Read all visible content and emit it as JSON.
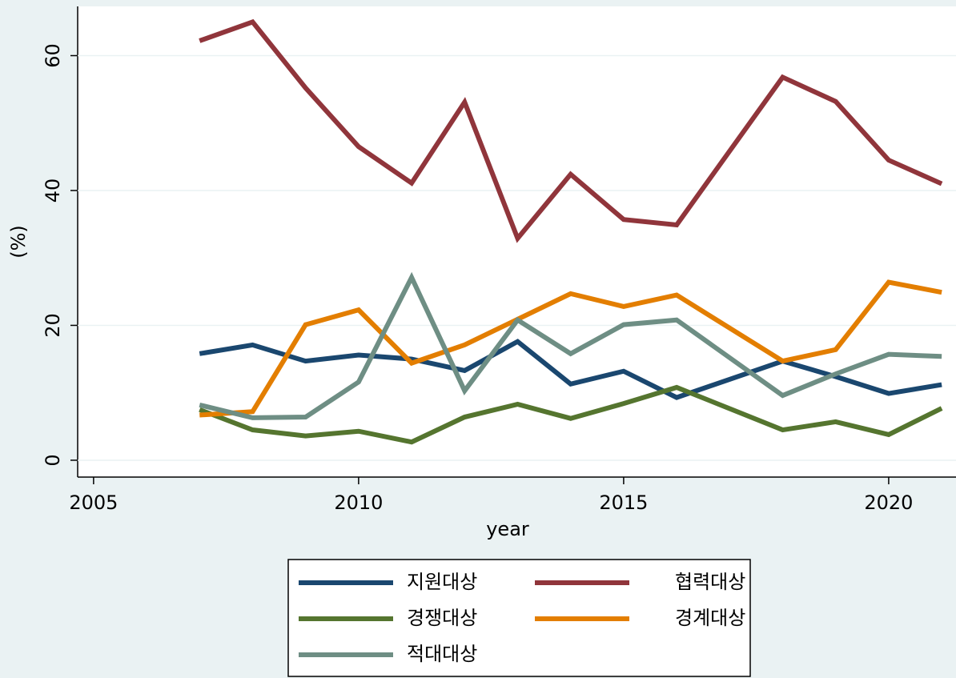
{
  "chart_data": {
    "type": "line",
    "x_label": "year",
    "y_label": "(%)",
    "x": [
      2007,
      2008,
      2009,
      2010,
      2011,
      2012,
      2013,
      2014,
      2015,
      2016,
      2018,
      2019,
      2020,
      2021
    ],
    "series": [
      {
        "name": "지원대상",
        "color": "#1a476f",
        "values": [
          15.8,
          17.1,
          14.7,
          15.6,
          15.0,
          13.3,
          17.6,
          11.3,
          13.2,
          9.3,
          14.7,
          12.4,
          9.9,
          11.2
        ]
      },
      {
        "name": "협력대상",
        "color": "#90353b",
        "values": [
          62.2,
          65.0,
          55.2,
          46.5,
          41.1,
          53.1,
          32.9,
          42.4,
          35.7,
          34.9,
          56.8,
          53.2,
          44.5,
          41.0
        ]
      },
      {
        "name": "경쟁대상",
        "color": "#55752f",
        "values": [
          7.5,
          4.5,
          3.6,
          4.3,
          2.7,
          6.4,
          8.3,
          6.2,
          8.4,
          10.8,
          4.5,
          5.7,
          3.8,
          7.7
        ]
      },
      {
        "name": "경계대상",
        "color": "#e37e00",
        "values": [
          6.7,
          7.2,
          20.1,
          22.3,
          14.4,
          17.1,
          20.9,
          24.7,
          22.8,
          24.5,
          14.7,
          16.4,
          26.4,
          24.9
        ]
      },
      {
        "name": "적대대상",
        "color": "#6e8e84",
        "values": [
          8.2,
          6.3,
          6.4,
          11.6,
          27.1,
          10.3,
          20.8,
          15.8,
          20.1,
          20.8,
          9.6,
          12.8,
          15.7,
          15.4
        ]
      }
    ],
    "xlim": [
      2004.7,
      2021.27
    ],
    "xticks": [
      2005,
      2010,
      2015,
      2020
    ],
    "ylim": [
      -2.5,
      67.3
    ],
    "yticks": [
      0,
      20,
      40,
      60
    ],
    "grid": true,
    "legend_position": "bottom"
  }
}
